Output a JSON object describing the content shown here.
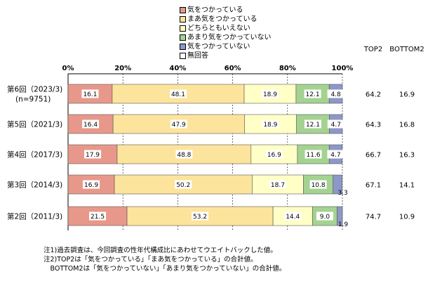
{
  "chart_data": {
    "type": "bar",
    "orientation": "horizontal",
    "stacked": true,
    "xlim": [
      0,
      100
    ],
    "x_ticks": [
      "0%",
      "20%",
      "40%",
      "60%",
      "80%",
      "100%"
    ],
    "legend_position": "top-center",
    "categories": [
      [
        "第6回（2023/3)",
        "(n=9751)"
      ],
      [
        "第5回（2021/3)"
      ],
      [
        "第4回（2017/3)"
      ],
      [
        "第3回（2014/3)"
      ],
      [
        "第2回（2011/3)"
      ]
    ],
    "series": [
      {
        "name": "気をつかっている",
        "color": "#e8988a",
        "values": [
          16.1,
          16.4,
          17.9,
          16.9,
          21.5
        ]
      },
      {
        "name": "まあ気をつかっている",
        "color": "#fde49c",
        "values": [
          48.1,
          47.9,
          48.8,
          50.2,
          53.2
        ]
      },
      {
        "name": "どちらともいえない",
        "color": "#ffffc6",
        "values": [
          18.9,
          18.9,
          16.9,
          18.7,
          14.4
        ]
      },
      {
        "name": "あまり気をつかっていない",
        "color": "#a4d391",
        "values": [
          12.1,
          12.1,
          11.6,
          10.8,
          9.0
        ]
      },
      {
        "name": "気をつかっていない",
        "color": "#8d97c9",
        "values": [
          4.8,
          4.7,
          4.7,
          3.3,
          1.9
        ]
      },
      {
        "name": "無回答",
        "color": "#ffffff",
        "values": [
          0,
          0,
          0,
          0,
          0
        ]
      }
    ],
    "data_labels": [
      [
        "16.1",
        "48.1",
        "18.9",
        "12.1",
        "4.8"
      ],
      [
        "16.4",
        "47.9",
        "18.9",
        "12.1",
        "4.7"
      ],
      [
        "17.9",
        "48.8",
        "16.9",
        "11.6",
        "4.7"
      ],
      [
        "16.9",
        "50.2",
        "18.7",
        "10.8",
        "3.3"
      ],
      [
        "21.5",
        "53.2",
        "14.4",
        "9.0",
        "1.9"
      ]
    ],
    "summary_columns": {
      "headers": [
        "TOP2",
        "BOTTOM2"
      ],
      "rows": [
        [
          "64.2",
          "16.9"
        ],
        [
          "64.3",
          "16.8"
        ],
        [
          "66.7",
          "16.3"
        ],
        [
          "67.1",
          "14.1"
        ],
        [
          "74.7",
          "10.9"
        ]
      ]
    }
  },
  "notes": [
    "注1)過去調査は、今回調査の性年代構成比にあわせてウエイトバックした値。",
    "注2)TOP2は「気をつかっている」「まあ気をつかっている」の合計値。",
    "　BOTTOM2は「気をつかっていない」「あまり気をつかっていない」の合計値。"
  ]
}
